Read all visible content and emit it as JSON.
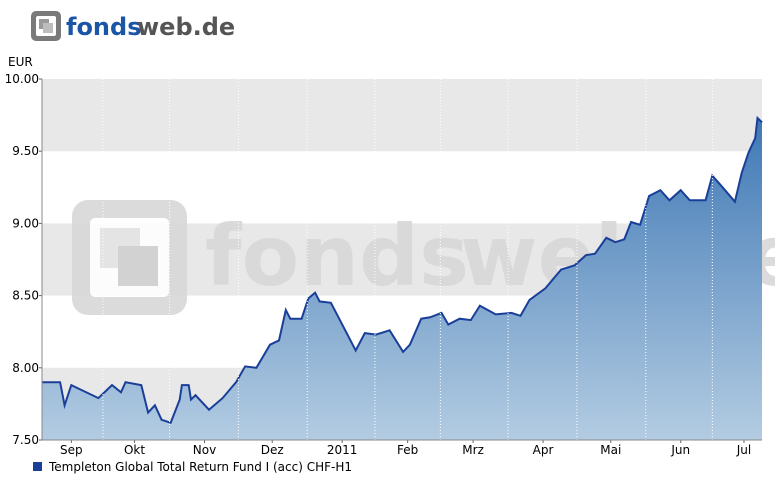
{
  "header": {
    "logo": [
      "fonds",
      "web.de"
    ]
  },
  "chart_data": {
    "type": "area",
    "watermark": [
      "fonds",
      "web.de"
    ],
    "y_label": "EUR",
    "xlim": [
      4,
      323
    ],
    "xticks": [
      {
        "value": 17,
        "label": "Sep"
      },
      {
        "value": 45,
        "label": "Okt"
      },
      {
        "value": 76,
        "label": "Nov"
      },
      {
        "value": 106,
        "label": "Dez"
      },
      {
        "value": 137,
        "label": "2011"
      },
      {
        "value": 166,
        "label": "Feb"
      },
      {
        "value": 195,
        "label": "Mrz"
      },
      {
        "value": 226,
        "label": "Apr"
      },
      {
        "value": 256,
        "label": "Mai"
      },
      {
        "value": 287,
        "label": "Jun"
      },
      {
        "value": 315,
        "label": "Jul"
      }
    ],
    "ylim": [
      7.5,
      10
    ],
    "yticks": [
      {
        "value": 7.5,
        "label": "7.50"
      },
      {
        "value": 8,
        "label": "8.00"
      },
      {
        "value": 8.5,
        "label": "8.50"
      },
      {
        "value": 9,
        "label": "9.00"
      },
      {
        "value": 9.5,
        "label": "9.50"
      },
      {
        "value": 10,
        "label": "10.00"
      }
    ],
    "grid": true,
    "series": [
      {
        "name": "Templeton Global Total Return Fund I (acc) CHF-H1",
        "color": "#1a3f99",
        "x": [
          4,
          12,
          14,
          17,
          21,
          29,
          35,
          39,
          41,
          48,
          51,
          54,
          57,
          61,
          65,
          66,
          69,
          70,
          72,
          78,
          84,
          90,
          94,
          99,
          105,
          109,
          112,
          114,
          119,
          122,
          125,
          127,
          132,
          136,
          143,
          147,
          152,
          158,
          164,
          167,
          172,
          176,
          181,
          184,
          189,
          194,
          198,
          205,
          212,
          216,
          220,
          227,
          234,
          240,
          245,
          249,
          254,
          258,
          262,
          265,
          269,
          273,
          278,
          282,
          287,
          291,
          298,
          301,
          305,
          311,
          314,
          317,
          320,
          321,
          323
        ],
        "values": [
          7.9,
          7.9,
          7.74,
          7.88,
          7.85,
          7.79,
          7.88,
          7.83,
          7.9,
          7.88,
          7.69,
          7.74,
          7.64,
          7.62,
          7.78,
          7.88,
          7.88,
          7.78,
          7.81,
          7.71,
          7.79,
          7.9,
          8.01,
          8.0,
          8.16,
          8.19,
          8.4,
          8.34,
          8.34,
          8.48,
          8.52,
          8.46,
          8.45,
          8.33,
          8.12,
          8.24,
          8.23,
          8.26,
          8.11,
          8.16,
          8.34,
          8.35,
          8.38,
          8.3,
          8.34,
          8.33,
          8.43,
          8.37,
          8.38,
          8.36,
          8.47,
          8.55,
          8.68,
          8.71,
          8.78,
          8.79,
          8.9,
          8.87,
          8.89,
          9.01,
          8.99,
          9.19,
          9.23,
          9.16,
          9.23,
          9.16,
          9.16,
          9.33,
          9.26,
          9.15,
          9.35,
          9.49,
          9.59,
          9.73,
          9.7
        ]
      }
    ]
  }
}
